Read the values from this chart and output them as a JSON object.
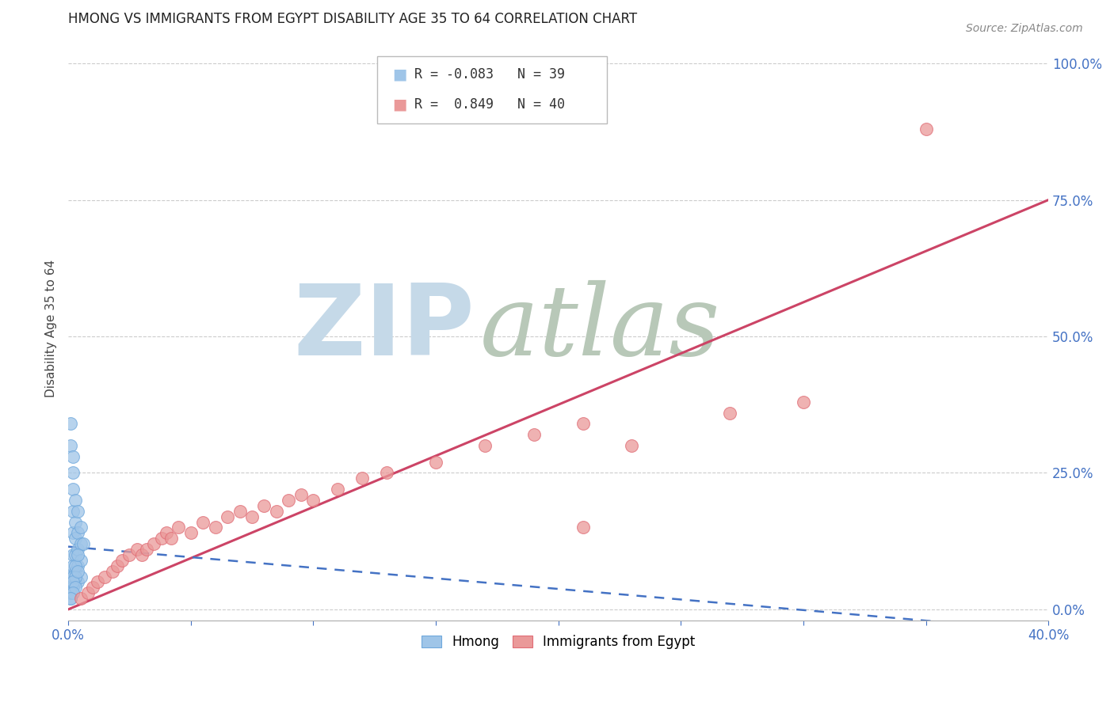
{
  "title": "HMONG VS IMMIGRANTS FROM EGYPT DISABILITY AGE 35 TO 64 CORRELATION CHART",
  "source": "Source: ZipAtlas.com",
  "ylabel": "Disability Age 35 to 64",
  "xlim": [
    0.0,
    0.4
  ],
  "ylim": [
    -0.02,
    1.05
  ],
  "xticks": [
    0.0,
    0.05,
    0.1,
    0.15,
    0.2,
    0.25,
    0.3,
    0.35,
    0.4
  ],
  "yticks_right": [
    0.0,
    0.25,
    0.5,
    0.75,
    1.0
  ],
  "ytick_labels_right": [
    "0.0%",
    "25.0%",
    "50.0%",
    "75.0%",
    "100.0%"
  ],
  "xtick_labels": [
    "0.0%",
    "",
    "",
    "",
    "",
    "",
    "",
    "",
    "40.0%"
  ],
  "hmong_R": -0.083,
  "hmong_N": 39,
  "egypt_R": 0.849,
  "egypt_N": 40,
  "hmong_color": "#9fc5e8",
  "egypt_color": "#ea9999",
  "hmong_edge_color": "#6fa8dc",
  "egypt_edge_color": "#e06c75",
  "hmong_line_color": "#4472c4",
  "egypt_line_color": "#cc4466",
  "watermark_zip": "ZIP",
  "watermark_atlas": "atlas",
  "watermark_color_zip": "#c5d9e8",
  "watermark_color_atlas": "#b8c8b8",
  "background_color": "#ffffff",
  "grid_color": "#cccccc",
  "tick_color": "#4472c4",
  "hmong_x": [
    0.001,
    0.001,
    0.001,
    0.002,
    0.002,
    0.002,
    0.002,
    0.002,
    0.002,
    0.002,
    0.003,
    0.003,
    0.003,
    0.003,
    0.003,
    0.003,
    0.004,
    0.004,
    0.004,
    0.004,
    0.004,
    0.005,
    0.005,
    0.005,
    0.005,
    0.006,
    0.001,
    0.002,
    0.003,
    0.004,
    0.001,
    0.002,
    0.003,
    0.001,
    0.002,
    0.004,
    0.003,
    0.002,
    0.001
  ],
  "hmong_y": [
    0.34,
    0.3,
    0.06,
    0.28,
    0.25,
    0.22,
    0.18,
    0.14,
    0.1,
    0.08,
    0.2,
    0.16,
    0.13,
    0.1,
    0.07,
    0.05,
    0.18,
    0.14,
    0.11,
    0.08,
    0.05,
    0.15,
    0.12,
    0.09,
    0.06,
    0.12,
    0.04,
    0.06,
    0.08,
    0.1,
    0.02,
    0.04,
    0.06,
    0.03,
    0.05,
    0.07,
    0.04,
    0.03,
    0.02
  ],
  "egypt_x": [
    0.005,
    0.008,
    0.01,
    0.012,
    0.015,
    0.018,
    0.02,
    0.022,
    0.025,
    0.028,
    0.03,
    0.032,
    0.035,
    0.038,
    0.04,
    0.042,
    0.045,
    0.05,
    0.055,
    0.06,
    0.065,
    0.07,
    0.075,
    0.08,
    0.085,
    0.09,
    0.095,
    0.1,
    0.11,
    0.12,
    0.13,
    0.15,
    0.17,
    0.19,
    0.21,
    0.23,
    0.27,
    0.3,
    0.35,
    0.21
  ],
  "egypt_y": [
    0.02,
    0.03,
    0.04,
    0.05,
    0.06,
    0.07,
    0.08,
    0.09,
    0.1,
    0.11,
    0.1,
    0.11,
    0.12,
    0.13,
    0.14,
    0.13,
    0.15,
    0.14,
    0.16,
    0.15,
    0.17,
    0.18,
    0.17,
    0.19,
    0.18,
    0.2,
    0.21,
    0.2,
    0.22,
    0.24,
    0.25,
    0.27,
    0.3,
    0.32,
    0.34,
    0.3,
    0.36,
    0.38,
    0.88,
    0.15
  ],
  "egypt_line_x0": 0.0,
  "egypt_line_y0": 0.0,
  "egypt_line_x1": 0.4,
  "egypt_line_y1": 0.75,
  "hmong_line_x0": 0.0,
  "hmong_line_y0": 0.115,
  "hmong_line_x1": 0.4,
  "hmong_line_y1": -0.04
}
